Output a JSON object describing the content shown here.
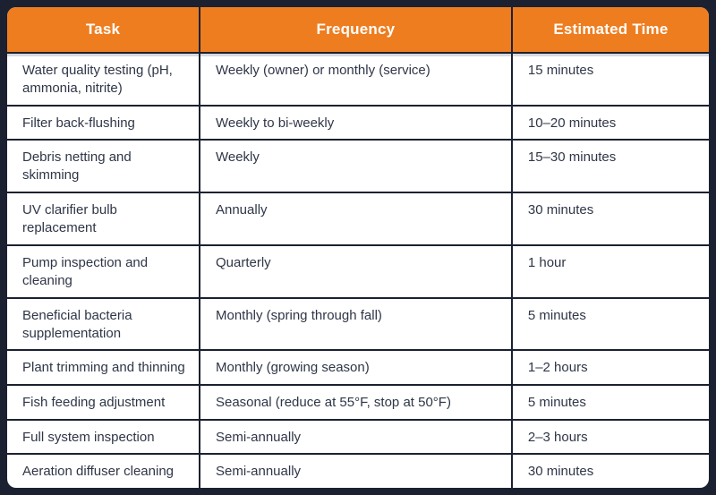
{
  "table": {
    "columns": [
      {
        "label": "Task"
      },
      {
        "label": "Frequency"
      },
      {
        "label": "Estimated Time"
      }
    ],
    "rows": [
      {
        "task": "Water quality testing (pH, ammonia, nitrite)",
        "frequency": "Weekly (owner) or monthly (service)",
        "time": "15 minutes"
      },
      {
        "task": "Filter back-flushing",
        "frequency": "Weekly to bi-weekly",
        "time": "10–20 minutes"
      },
      {
        "task": "Debris netting and skimming",
        "frequency": "Weekly",
        "time": "15–30 minutes"
      },
      {
        "task": "UV clarifier bulb replacement",
        "frequency": "Annually",
        "time": "30 minutes"
      },
      {
        "task": "Pump inspection and cleaning",
        "frequency": "Quarterly",
        "time": "1 hour"
      },
      {
        "task": "Beneficial bacteria supplementation",
        "frequency": "Monthly (spring through fall)",
        "time": "5 minutes"
      },
      {
        "task": "Plant trimming and thinning",
        "frequency": "Monthly (growing season)",
        "time": "1–2 hours"
      },
      {
        "task": "Fish feeding adjustment",
        "frequency": "Seasonal (reduce at 55°F, stop at 50°F)",
        "time": "5 minutes"
      },
      {
        "task": "Full system inspection",
        "frequency": "Semi-annually",
        "time": "2–3 hours"
      },
      {
        "task": "Aeration diffuser cleaning",
        "frequency": "Semi-annually",
        "time": "30 minutes"
      }
    ],
    "colors": {
      "header_bg": "#EE7D1F",
      "border": "#1B2130",
      "header_text": "#FFFFFF",
      "body_text": "#2F3647",
      "cell_bg": "#FFFFFF"
    }
  }
}
